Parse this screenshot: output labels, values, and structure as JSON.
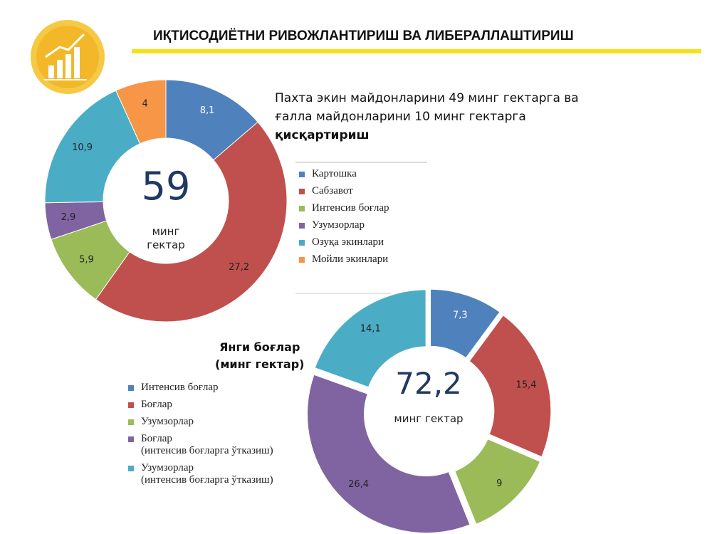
{
  "header": {
    "title": "ИҚТИСОДИЁТНИ РИВОЖЛАНТИРИШ ВА ЛИБЕРАЛЛАШТИРИШ"
  },
  "chart_data": [
    {
      "type": "donut",
      "title": "Пахта экин майдонларини 49 минг гектарга ва\nғалла майдонларини 10 минг гектарга",
      "title_emphasis": "қисқартириш",
      "center_value": 59,
      "center_label": "минг\nгектар",
      "categories": [
        "Картошка",
        "Сабзавот",
        "Интенсив боғлар",
        "Узумзорлар",
        "Озуқа экинлари",
        "Мойли экинлари"
      ],
      "values": [
        8.1,
        27.2,
        5.9,
        2.9,
        10.9,
        4
      ],
      "value_labels": [
        "8,1",
        "27,2",
        "5,9",
        "2,9",
        "10,9",
        "4"
      ],
      "value_label_colors": [
        "#ffffff",
        "#222222",
        "#222222",
        "#222222",
        "#222222",
        "#222222"
      ],
      "colors": [
        "#4f81bd",
        "#c0504d",
        "#9bbb59",
        "#8064a2",
        "#4bacc6",
        "#f79646"
      ]
    },
    {
      "type": "donut",
      "title": "Янги боғлар\n(минг гектар)",
      "center_value": 72.2,
      "center_value_label": "72,2",
      "center_label": "минг гектар",
      "categories": [
        "Интенсив боғлар",
        "Боғлар",
        "Узумзорлар",
        "Боғлар\n(интенсив боғларга ўтказиш)",
        "Узумзорлар\n(интенсив боғларга ўтказиш)"
      ],
      "values": [
        7.3,
        15.4,
        9,
        26.4,
        14.1
      ],
      "value_labels": [
        "7,3",
        "15,4",
        "9",
        "26,4",
        "14,1"
      ],
      "value_label_colors": [
        "#ffffff",
        "#222222",
        "#222222",
        "#222222",
        "#222222"
      ],
      "colors": [
        "#4f81bd",
        "#c0504d",
        "#9bbb59",
        "#8064a2",
        "#4bacc6"
      ],
      "exploded": true
    }
  ]
}
